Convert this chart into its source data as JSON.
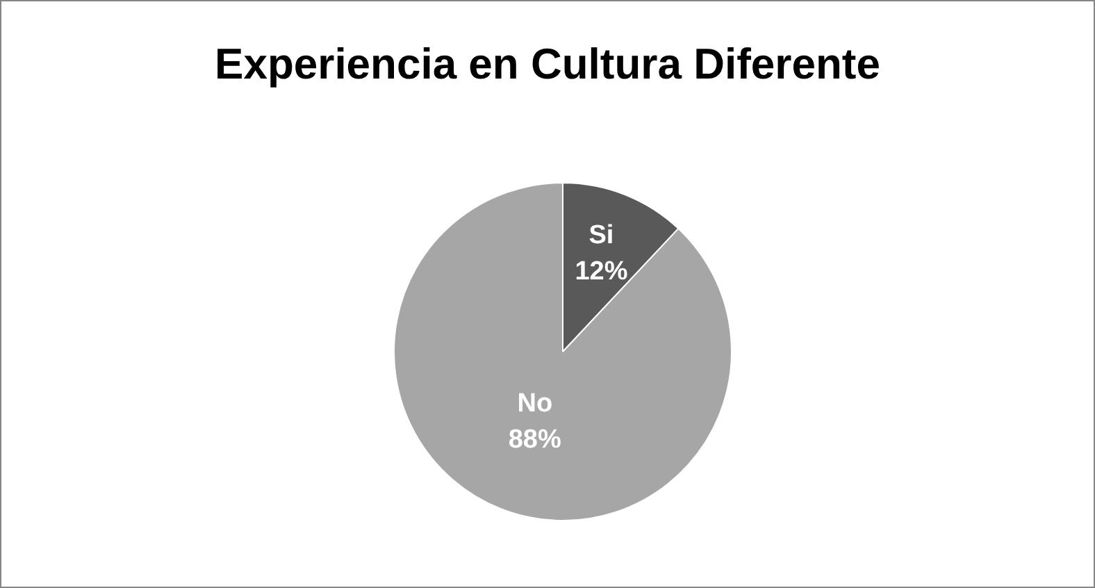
{
  "chart_data": {
    "type": "pie",
    "title": "Experiencia en Cultura Diferente",
    "categories": [
      "Si",
      "No"
    ],
    "values": [
      12,
      88
    ],
    "value_labels": [
      "12%",
      "88%"
    ],
    "colors": [
      "#595959",
      "#a6a6a6"
    ],
    "legend": false
  }
}
